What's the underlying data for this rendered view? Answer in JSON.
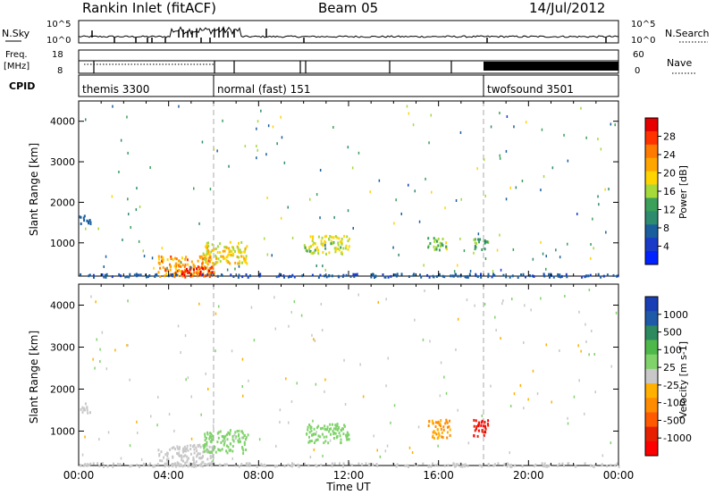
{
  "header": {
    "title": "Rankin Inlet (fitACF)",
    "beam": "Beam 05",
    "date": "14/Jul/2012"
  },
  "status_panels": {
    "nsky_label": "N.Sky",
    "nsky_ticks": [
      "10^5",
      "10^0"
    ],
    "nsearch_label": "N.Search",
    "nsearch_ticks": [
      "10^5",
      "10^0"
    ],
    "freq_label_1": "Freq.",
    "freq_label_2": "[MHz]",
    "freq_ticks": [
      "18",
      "8"
    ],
    "nave_label": "Nave",
    "nave_ticks": [
      "60",
      "0"
    ],
    "cpid_label": "CPID",
    "cpid_segments": [
      {
        "label": "themis 3300",
        "start_hour": 0.0
      },
      {
        "label": "normal (fast) 151",
        "start_hour": 6.0
      },
      {
        "label": "twofsound 3501",
        "start_hour": 18.0
      }
    ]
  },
  "colorbars": {
    "power": {
      "label": "Power [dB]",
      "ticks": [
        "28",
        "24",
        "20",
        "16",
        "12",
        "8",
        "4"
      ],
      "colors": [
        "#e60000",
        "#ff3300",
        "#ff7a00",
        "#ffa500",
        "#ffd400",
        "#a6d93a",
        "#3aa05a",
        "#2e8b6e",
        "#1a5e9e",
        "#1a3bc8",
        "#0022ff"
      ]
    },
    "velocity": {
      "label": "Velocity [m s-1]",
      "ticks": [
        "1000",
        "500",
        "100",
        "25",
        "-25",
        "-100",
        "-500",
        "-1000"
      ],
      "colors": [
        "#1a3fb5",
        "#1f5aa8",
        "#2c8a5e",
        "#4fb84a",
        "#7fd36a",
        "#c8c8c8",
        "#ffb000",
        "#ff8c00",
        "#ff5a00",
        "#e62000",
        "#ff0000"
      ]
    }
  },
  "axes": {
    "ylabel": "Slant Range [km]",
    "xlabel": "Time UT",
    "yticks": [
      "4000",
      "3000",
      "2000",
      "1000"
    ],
    "xticks": [
      "00:00",
      "04:00",
      "08:00",
      "12:00",
      "16:00",
      "20:00",
      "00:00"
    ]
  },
  "chart_data": [
    {
      "type": "heatmap",
      "title": "",
      "variable": "Power",
      "units": "dB",
      "xlabel": "Time UT",
      "ylabel": "Slant Range [km]",
      "xlim_hours": [
        0,
        24
      ],
      "ylim_km": [
        180,
        4500
      ],
      "zlim": [
        0,
        30
      ],
      "mode_change_hours": [
        6.0,
        18.0
      ],
      "echo_regions": [
        {
          "t_start": 0.0,
          "t_end": 0.5,
          "r_min": 1450,
          "r_max": 1700,
          "value": 6
        },
        {
          "t_start": 3.5,
          "t_end": 6.0,
          "r_min": 180,
          "r_max": 700,
          "value": 22
        },
        {
          "t_start": 4.5,
          "t_end": 6.0,
          "r_min": 180,
          "r_max": 450,
          "value": 28
        },
        {
          "t_start": 5.5,
          "t_end": 7.5,
          "r_min": 500,
          "r_max": 1050,
          "value": 18
        },
        {
          "t_start": 10.0,
          "t_end": 12.0,
          "r_min": 750,
          "r_max": 1200,
          "value": 16
        },
        {
          "t_start": 15.5,
          "t_end": 16.5,
          "r_min": 850,
          "r_max": 1150,
          "value": 14
        },
        {
          "t_start": 17.5,
          "t_end": 18.2,
          "r_min": 850,
          "r_max": 1150,
          "value": 12
        },
        {
          "t_start": 0.0,
          "t_end": 24.0,
          "r_min": 180,
          "r_max": 260,
          "value": 5
        }
      ]
    },
    {
      "type": "heatmap",
      "title": "",
      "variable": "Velocity",
      "units": "m s-1",
      "xlabel": "Time UT",
      "ylabel": "Slant Range [km]",
      "xlim_hours": [
        0,
        24
      ],
      "ylim_km": [
        180,
        4500
      ],
      "zlim": [
        -1000,
        1000
      ],
      "mode_change_hours": [
        6.0,
        18.0
      ],
      "echo_regions": [
        {
          "t_start": 0.0,
          "t_end": 0.5,
          "r_min": 1450,
          "r_max": 1700,
          "value": 10
        },
        {
          "t_start": 3.5,
          "t_end": 6.0,
          "r_min": 180,
          "r_max": 700,
          "value": 0
        },
        {
          "t_start": 5.5,
          "t_end": 7.5,
          "r_min": 500,
          "r_max": 1050,
          "value": 120
        },
        {
          "t_start": 10.0,
          "t_end": 12.0,
          "r_min": 750,
          "r_max": 1200,
          "value": 150
        },
        {
          "t_start": 15.5,
          "t_end": 16.5,
          "r_min": 850,
          "r_max": 1300,
          "value": -300
        },
        {
          "t_start": 17.5,
          "t_end": 18.2,
          "r_min": 850,
          "r_max": 1350,
          "value": -1000
        },
        {
          "t_start": 0.0,
          "t_end": 24.0,
          "r_min": 180,
          "r_max": 260,
          "value": -80
        }
      ]
    }
  ]
}
